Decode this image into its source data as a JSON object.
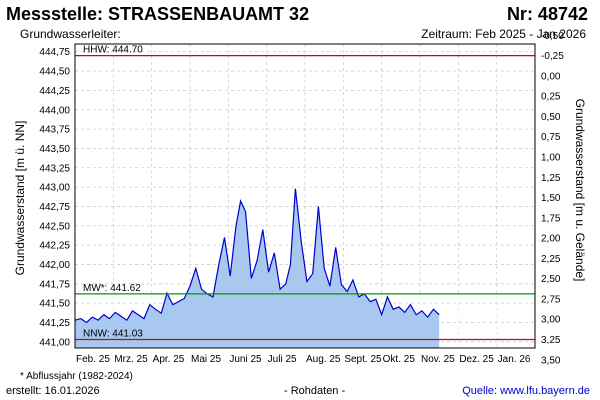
{
  "header": {
    "title": "Messstelle: STRASSENBAUAMT 32",
    "nr": "Nr: 48742",
    "aquifer_label": "Grundwasserleiter:",
    "period": "Zeitraum: Feb 2025 - Jan 2026"
  },
  "footer": {
    "note": "* Abflussjahr (1982-2024)",
    "created": "erstellt:  16.01.2026",
    "rawdata": "- Rohdaten -",
    "source": "Quelle:  www.lfu.bayern.de"
  },
  "colors": {
    "line": "#0000cc",
    "fill": "#a8c8f0",
    "hhw": "#dd0000",
    "nnw": "#dd0000",
    "mw": "#009900",
    "grid": "#cccccc"
  },
  "chart_data": {
    "type": "area",
    "ylabel": "Grundwasserstand [m ü. NN]",
    "y2label": "Grundwasserstand [m u. Gelände]",
    "ylim": [
      440.92,
      444.85
    ],
    "yticks": [
      "444,75",
      "444,50",
      "444,25",
      "444,00",
      "443,75",
      "443,50",
      "443,25",
      "443,00",
      "442,75",
      "442,50",
      "442,25",
      "442,00",
      "441,75",
      "441,50",
      "441,25",
      "441,00"
    ],
    "y2ticks": [
      "-0,50",
      "-0,25",
      "0,00",
      "0,25",
      "0,50",
      "0,75",
      "1,00",
      "1,25",
      "1,50",
      "1,75",
      "2,00",
      "2,25",
      "2,50",
      "2,75",
      "3,00",
      "3,25",
      "3,50"
    ],
    "xlim": [
      0,
      12
    ],
    "xticks": [
      "Feb. 25",
      "Mrz. 25",
      "Apr. 25",
      "Mai 25",
      "Juni 25",
      "Juli 25",
      "Aug. 25",
      "Sept. 25",
      "Okt. 25",
      "Nov. 25",
      "Dez. 25",
      "Jan. 26"
    ],
    "reference_lines": [
      {
        "label": "HHW: 444.70",
        "value": 444.7
      },
      {
        "label": "MW*: 441.62",
        "value": 441.62
      },
      {
        "label": "NNW: 441.03",
        "value": 441.03
      }
    ],
    "series": [
      {
        "x": [
          0.0,
          0.15,
          0.3,
          0.45,
          0.6,
          0.75,
          0.9,
          1.05,
          1.2,
          1.35,
          1.5,
          1.65,
          1.8,
          1.95,
          2.1,
          2.25,
          2.4,
          2.55,
          2.7,
          2.85,
          3.0,
          3.15,
          3.3,
          3.45,
          3.6,
          3.75,
          3.9,
          4.05,
          4.2,
          4.32,
          4.45,
          4.6,
          4.75,
          4.9,
          5.05,
          5.2,
          5.35,
          5.5,
          5.62,
          5.75,
          5.9,
          6.05,
          6.2,
          6.35,
          6.5,
          6.65,
          6.8,
          6.95,
          7.1,
          7.25,
          7.4,
          7.55,
          7.7,
          7.85,
          8.0,
          8.15,
          8.3,
          8.45,
          8.6,
          8.75,
          8.9,
          9.05,
          9.2,
          9.35,
          9.5
        ],
        "y": [
          441.28,
          441.3,
          441.25,
          441.32,
          441.28,
          441.35,
          441.3,
          441.38,
          441.33,
          441.28,
          441.4,
          441.35,
          441.3,
          441.48,
          441.42,
          441.37,
          441.63,
          441.48,
          441.52,
          441.56,
          441.72,
          441.95,
          441.68,
          441.62,
          441.58,
          442.0,
          442.35,
          441.85,
          442.5,
          442.82,
          442.68,
          441.82,
          442.05,
          442.45,
          441.9,
          442.15,
          441.68,
          441.75,
          442.0,
          442.98,
          442.3,
          441.78,
          441.88,
          442.75,
          441.95,
          441.72,
          442.22,
          441.74,
          441.65,
          441.8,
          441.58,
          441.62,
          441.52,
          441.55,
          441.35,
          441.58,
          441.42,
          441.45,
          441.38,
          441.48,
          441.35,
          441.4,
          441.32,
          441.42,
          441.35
        ]
      }
    ]
  }
}
